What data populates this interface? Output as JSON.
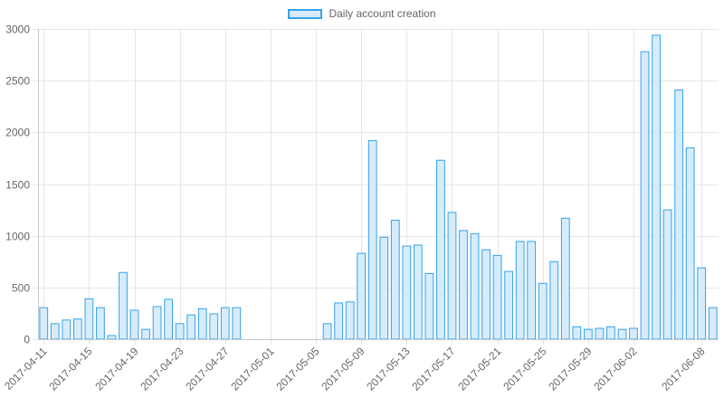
{
  "chart_data": {
    "type": "bar",
    "title": "",
    "xlabel": "",
    "ylabel": "",
    "legend": {
      "label": "Daily account creation",
      "position": "top"
    },
    "grid": true,
    "ylim": [
      0,
      3000
    ],
    "yticks": [
      "0",
      "500",
      "1000",
      "1500",
      "2000",
      "2500",
      "3000"
    ],
    "xtick_labels": [
      "2017-04-11",
      "2017-04-15",
      "2017-04-19",
      "2017-04-23",
      "2017-04-27",
      "2017-05-01",
      "2017-05-05",
      "2017-05-09",
      "2017-05-13",
      "2017-05-17",
      "2017-05-21",
      "2017-05-25",
      "2017-05-29",
      "2017-06-02",
      "2017-06-08"
    ],
    "colors": {
      "bar_fill": "#d7ecfb",
      "bar_border": "#36a2eb",
      "grid": "#e6e6e6",
      "axis": "#c8c8c8",
      "text": "#666666"
    },
    "series": [
      {
        "name": "Daily account creation",
        "points": [
          {
            "x": "2017-04-11",
            "y": 305
          },
          {
            "x": "2017-04-12",
            "y": 150
          },
          {
            "x": "2017-04-13",
            "y": 185
          },
          {
            "x": "2017-04-14",
            "y": 195
          },
          {
            "x": "2017-04-15",
            "y": 390
          },
          {
            "x": "2017-04-16",
            "y": 305
          },
          {
            "x": "2017-04-17",
            "y": 35
          },
          {
            "x": "2017-04-18",
            "y": 645
          },
          {
            "x": "2017-04-19",
            "y": 280
          },
          {
            "x": "2017-04-20",
            "y": 95
          },
          {
            "x": "2017-04-21",
            "y": 315
          },
          {
            "x": "2017-04-22",
            "y": 385
          },
          {
            "x": "2017-04-23",
            "y": 150
          },
          {
            "x": "2017-04-24",
            "y": 235
          },
          {
            "x": "2017-04-25",
            "y": 295
          },
          {
            "x": "2017-04-26",
            "y": 245
          },
          {
            "x": "2017-04-27",
            "y": 305
          },
          {
            "x": "2017-04-28",
            "y": 305
          },
          {
            "x": "2017-05-06",
            "y": 150
          },
          {
            "x": "2017-05-07",
            "y": 350
          },
          {
            "x": "2017-05-08",
            "y": 360
          },
          {
            "x": "2017-05-09",
            "y": 830
          },
          {
            "x": "2017-05-10",
            "y": 1920
          },
          {
            "x": "2017-05-11",
            "y": 985
          },
          {
            "x": "2017-05-12",
            "y": 1150
          },
          {
            "x": "2017-05-13",
            "y": 900
          },
          {
            "x": "2017-05-14",
            "y": 910
          },
          {
            "x": "2017-05-15",
            "y": 635
          },
          {
            "x": "2017-05-16",
            "y": 1730
          },
          {
            "x": "2017-05-17",
            "y": 1225
          },
          {
            "x": "2017-05-18",
            "y": 1050
          },
          {
            "x": "2017-05-19",
            "y": 1020
          },
          {
            "x": "2017-05-20",
            "y": 865
          },
          {
            "x": "2017-05-21",
            "y": 810
          },
          {
            "x": "2017-05-22",
            "y": 655
          },
          {
            "x": "2017-05-23",
            "y": 945
          },
          {
            "x": "2017-05-24",
            "y": 945
          },
          {
            "x": "2017-05-25",
            "y": 540
          },
          {
            "x": "2017-05-26",
            "y": 750
          },
          {
            "x": "2017-05-27",
            "y": 1170
          },
          {
            "x": "2017-05-28",
            "y": 120
          },
          {
            "x": "2017-05-29",
            "y": 95
          },
          {
            "x": "2017-05-30",
            "y": 105
          },
          {
            "x": "2017-05-31",
            "y": 120
          },
          {
            "x": "2017-06-01",
            "y": 95
          },
          {
            "x": "2017-06-02",
            "y": 105
          },
          {
            "x": "2017-06-03",
            "y": 2780
          },
          {
            "x": "2017-06-04",
            "y": 2940
          },
          {
            "x": "2017-06-05",
            "y": 1250
          },
          {
            "x": "2017-06-06",
            "y": 2410
          },
          {
            "x": "2017-06-07",
            "y": 1850
          },
          {
            "x": "2017-06-08",
            "y": 690
          },
          {
            "x": "2017-06-09",
            "y": 305
          }
        ]
      }
    ]
  }
}
